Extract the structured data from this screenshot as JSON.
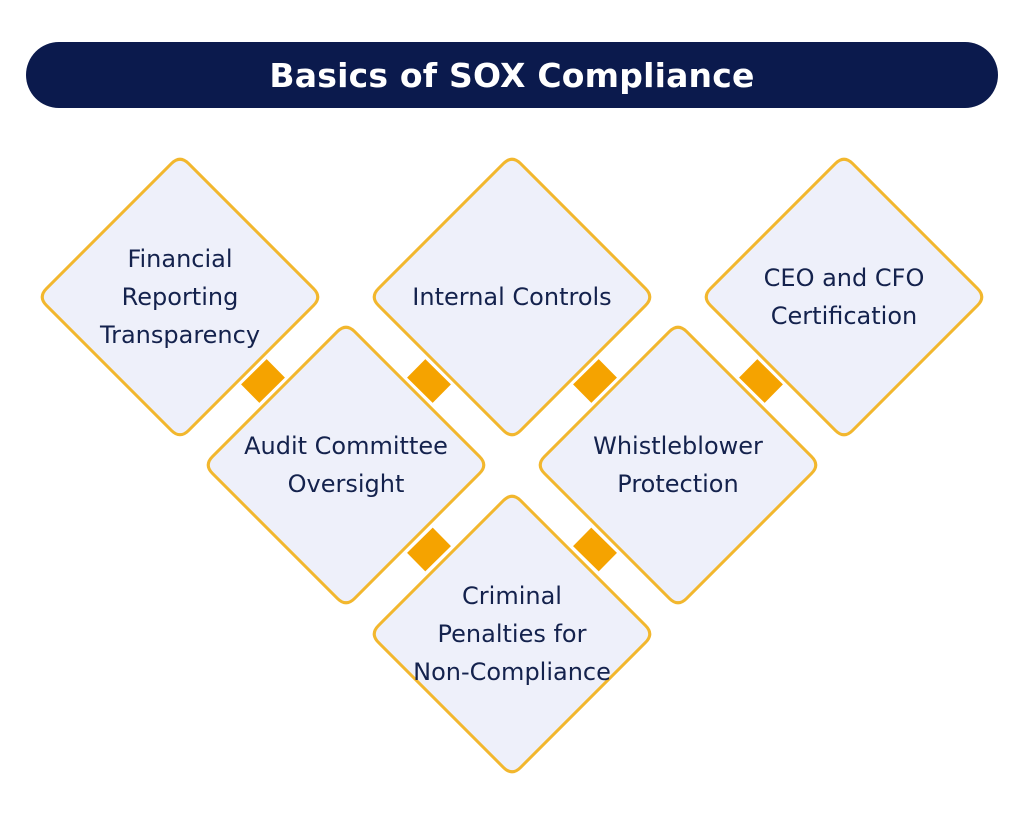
{
  "title": "Basics of SOX Compliance",
  "colors": {
    "title_bg": "#0b1a4d",
    "title_text": "#ffffff",
    "diamond_fill": "#eef0fa",
    "diamond_border": "#f2b72e",
    "connector": "#f5a300",
    "label_text": "#14224d"
  },
  "items": [
    {
      "label": "Financial\nReporting\nTransparency"
    },
    {
      "label": "Internal Controls"
    },
    {
      "label": "CEO and CFO\nCertification"
    },
    {
      "label": "Audit Committee\nOversight"
    },
    {
      "label": "Whistleblower\nProtection"
    },
    {
      "label": "Criminal\nPenalties for\nNon-Compliance"
    }
  ]
}
